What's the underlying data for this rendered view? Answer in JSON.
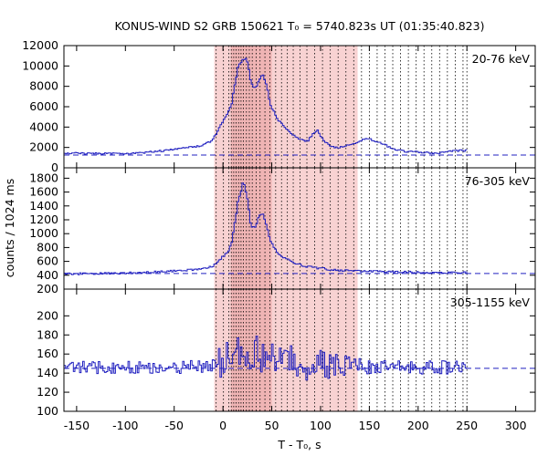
{
  "colors": {
    "data": "#2020c0",
    "baseline": "#2020c0",
    "shade": "#f8d2d2",
    "shade_core": "#efb4b4",
    "interval_line": "#000000",
    "frame": "#000000"
  },
  "chart_data": {
    "type": "line",
    "title": "KONUS-WIND S2 GRB 150621 T₀ = 5740.823s UT (01:35:40.823)",
    "xlabel": "T - T₀, s",
    "ylabel": "counts / 1024 ms",
    "xlim": [
      -163,
      320
    ],
    "x_ticks": [
      -150,
      -100,
      -50,
      0,
      50,
      100,
      150,
      200,
      250,
      300
    ],
    "grid": false,
    "shaded_interval": [
      -9,
      138
    ],
    "core_interval": [
      8,
      50
    ],
    "interval_boundaries": [
      -7,
      0.5,
      6,
      8.5,
      11,
      13.5,
      16,
      18.5,
      21,
      24,
      27,
      30,
      34,
      38,
      43,
      48,
      54,
      60,
      66,
      72,
      79,
      86,
      94,
      102,
      110,
      118,
      126,
      134,
      142,
      150,
      158,
      166,
      174,
      182,
      190,
      198,
      206,
      214,
      222,
      230,
      238,
      246,
      250
    ],
    "panels": [
      {
        "band": "20-76 keV",
        "ylim": [
          0,
          12000
        ],
        "y_ticks": [
          0,
          2000,
          4000,
          6000,
          8000,
          10000,
          12000
        ],
        "baseline": 1250,
        "shape": [
          [
            -163,
            1450
          ],
          [
            -140,
            1420
          ],
          [
            -120,
            1400
          ],
          [
            -100,
            1350
          ],
          [
            -80,
            1500
          ],
          [
            -60,
            1700
          ],
          [
            -40,
            1950
          ],
          [
            -25,
            2150
          ],
          [
            -15,
            2500
          ],
          [
            -8,
            3200
          ],
          [
            -3,
            4200
          ],
          [
            3,
            5200
          ],
          [
            8,
            6200
          ],
          [
            12,
            8500
          ],
          [
            15,
            10000
          ],
          [
            18,
            10400
          ],
          [
            22,
            10800
          ],
          [
            25,
            10200
          ],
          [
            28,
            8300
          ],
          [
            32,
            7800
          ],
          [
            36,
            8500
          ],
          [
            40,
            9200
          ],
          [
            44,
            8100
          ],
          [
            48,
            6100
          ],
          [
            52,
            5400
          ],
          [
            56,
            4700
          ],
          [
            62,
            4100
          ],
          [
            68,
            3500
          ],
          [
            74,
            3000
          ],
          [
            80,
            2750
          ],
          [
            86,
            2600
          ],
          [
            92,
            3400
          ],
          [
            96,
            3700
          ],
          [
            100,
            3000
          ],
          [
            106,
            2400
          ],
          [
            112,
            2050
          ],
          [
            120,
            2000
          ],
          [
            128,
            2200
          ],
          [
            136,
            2450
          ],
          [
            144,
            2800
          ],
          [
            150,
            2800
          ],
          [
            158,
            2550
          ],
          [
            166,
            2200
          ],
          [
            176,
            1800
          ],
          [
            186,
            1600
          ],
          [
            196,
            1550
          ],
          [
            210,
            1500
          ],
          [
            220,
            1450
          ],
          [
            232,
            1650
          ],
          [
            240,
            1700
          ],
          [
            250,
            1700
          ]
        ],
        "noise": 90,
        "spike_noise": 0
      },
      {
        "band": "76-305 keV",
        "ylim": [
          200,
          1950
        ],
        "y_ticks": [
          200,
          400,
          600,
          800,
          1000,
          1200,
          1400,
          1600,
          1800
        ],
        "baseline": 425,
        "shape": [
          [
            -163,
            420
          ],
          [
            -120,
            425
          ],
          [
            -80,
            440
          ],
          [
            -50,
            460
          ],
          [
            -30,
            480
          ],
          [
            -18,
            500
          ],
          [
            -10,
            540
          ],
          [
            -5,
            610
          ],
          [
            0,
            680
          ],
          [
            5,
            750
          ],
          [
            8,
            860
          ],
          [
            12,
            1200
          ],
          [
            15,
            1500
          ],
          [
            18,
            1620
          ],
          [
            20,
            1780
          ],
          [
            22,
            1650
          ],
          [
            25,
            1450
          ],
          [
            28,
            1100
          ],
          [
            32,
            1080
          ],
          [
            36,
            1250
          ],
          [
            40,
            1280
          ],
          [
            44,
            1100
          ],
          [
            48,
            900
          ],
          [
            52,
            780
          ],
          [
            58,
            690
          ],
          [
            64,
            640
          ],
          [
            70,
            600
          ],
          [
            76,
            560
          ],
          [
            84,
            530
          ],
          [
            92,
            510
          ],
          [
            100,
            500
          ],
          [
            110,
            480
          ],
          [
            120,
            470
          ],
          [
            140,
            460
          ],
          [
            170,
            450
          ],
          [
            210,
            440
          ],
          [
            250,
            440
          ]
        ],
        "noise": 14,
        "spike_noise": 0
      },
      {
        "band": "305-1155 keV",
        "ylim": [
          100,
          228
        ],
        "y_ticks": [
          100,
          120,
          140,
          160,
          180,
          200
        ],
        "baseline": 145,
        "shape": [
          [
            -163,
            146
          ],
          [
            -100,
            146
          ],
          [
            -50,
            146
          ],
          [
            -10,
            147
          ],
          [
            0,
            150
          ],
          [
            10,
            155
          ],
          [
            20,
            160
          ],
          [
            30,
            160
          ],
          [
            40,
            157
          ],
          [
            60,
            152
          ],
          [
            80,
            149
          ],
          [
            100,
            147
          ],
          [
            140,
            146
          ],
          [
            200,
            146
          ],
          [
            250,
            146
          ]
        ],
        "noise": 7,
        "spike_noise": 15
      }
    ]
  }
}
